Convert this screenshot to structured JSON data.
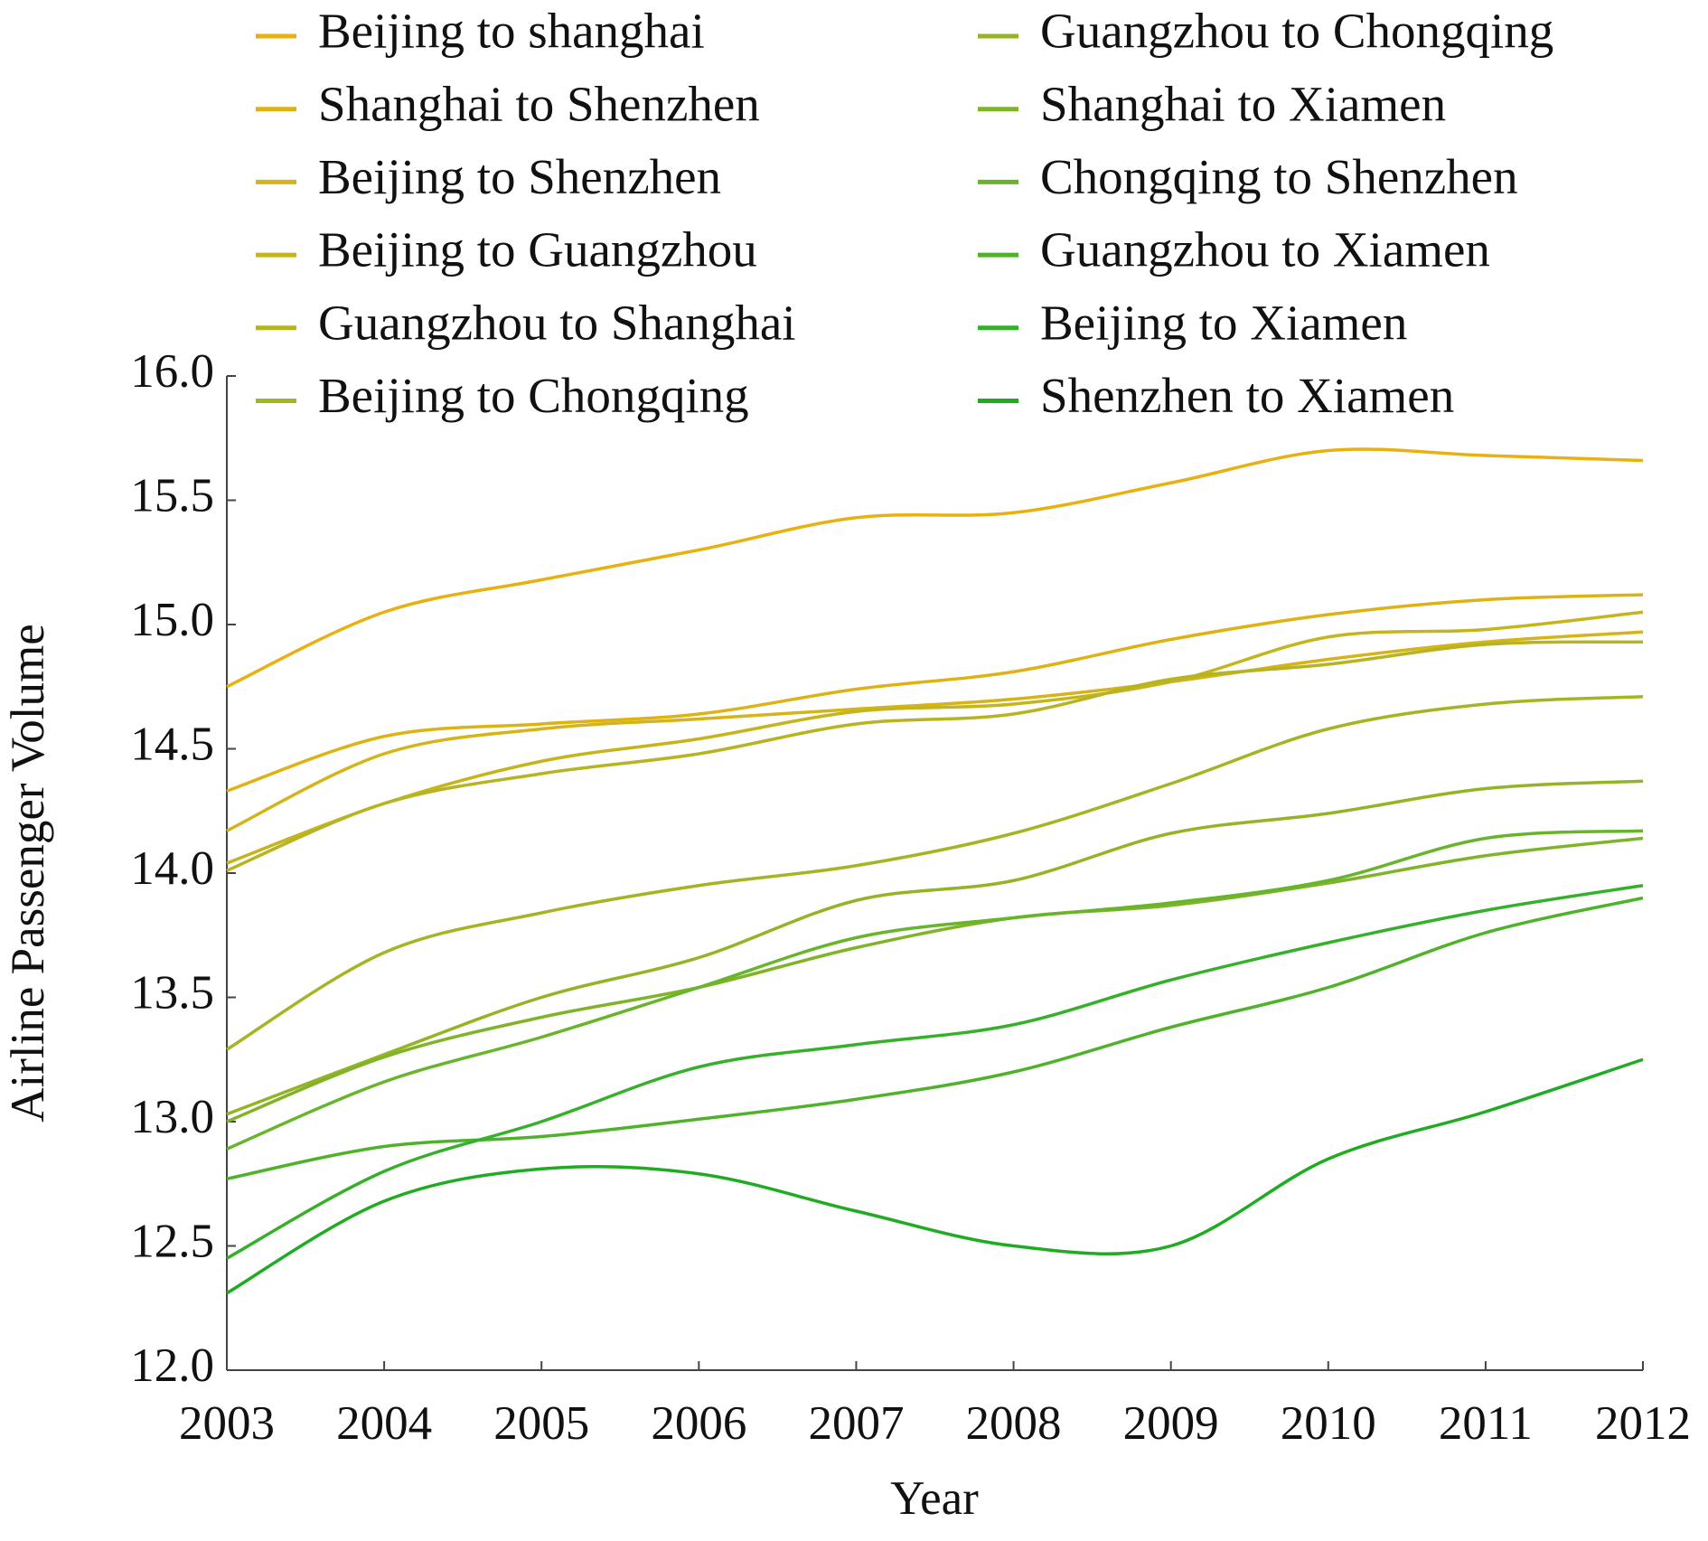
{
  "chart_data": {
    "type": "line",
    "x_label": "Year",
    "y_label": "Airline Passenger Volume",
    "x": [
      2003,
      2004,
      2005,
      2006,
      2007,
      2008,
      2009,
      2010,
      2011,
      2012
    ],
    "xlim": [
      2003,
      2012
    ],
    "xticks": [
      2003,
      2004,
      2005,
      2006,
      2007,
      2008,
      2009,
      2010,
      2011,
      2012
    ],
    "ylim": [
      12.0,
      16.0
    ],
    "yticks": [
      {
        "value": 12,
        "label": "12.0"
      },
      12.5,
      {
        "value": 13,
        "label": "13.0"
      },
      13.5,
      {
        "value": 14,
        "label": "14.0"
      },
      14.5,
      {
        "value": 15,
        "label": "15.0"
      },
      15.5,
      {
        "value": 16,
        "label": "16.0"
      }
    ],
    "series": [
      {
        "name": "Beijing to shanghai",
        "color": "#e8b010",
        "values": [
          14.75,
          15.05,
          15.18,
          15.3,
          15.43,
          15.45,
          15.57,
          15.7,
          15.68,
          15.66
        ]
      },
      {
        "name": "Shanghai to Shenzhen",
        "color": "#dfb214",
        "values": [
          14.33,
          14.55,
          14.6,
          14.64,
          14.74,
          14.81,
          14.94,
          15.04,
          15.1,
          15.12
        ]
      },
      {
        "name": "Beijing to Shenzhen",
        "color": "#d4b418",
        "values": [
          14.17,
          14.48,
          14.58,
          14.62,
          14.66,
          14.7,
          14.77,
          14.86,
          14.93,
          14.97
        ]
      },
      {
        "name": "Beijing to Guangzhou",
        "color": "#c6b41c",
        "values": [
          14.04,
          14.28,
          14.45,
          14.54,
          14.65,
          14.68,
          14.77,
          14.95,
          14.98,
          15.05
        ]
      },
      {
        "name": "Guangzhou to Shanghai",
        "color": "#b6b420",
        "values": [
          14.01,
          14.28,
          14.4,
          14.48,
          14.6,
          14.64,
          14.78,
          14.84,
          14.92,
          14.93
        ]
      },
      {
        "name": "Beijing to Chongqing",
        "color": "#a6b424",
        "values": [
          13.29,
          13.68,
          13.84,
          13.95,
          14.03,
          14.16,
          14.36,
          14.58,
          14.68,
          14.71
        ]
      },
      {
        "name": "Guangzhou to Chongqing",
        "color": "#94b426",
        "values": [
          13.03,
          13.27,
          13.5,
          13.66,
          13.89,
          13.97,
          14.16,
          14.24,
          14.34,
          14.37
        ]
      },
      {
        "name": "Shanghai to Xiamen",
        "color": "#80b428",
        "values": [
          13.0,
          13.26,
          13.42,
          13.54,
          13.7,
          13.82,
          13.87,
          13.96,
          14.07,
          14.14
        ]
      },
      {
        "name": "Chongqing to Shenzhen",
        "color": "#68b42a",
        "values": [
          12.89,
          13.16,
          13.34,
          13.54,
          13.74,
          13.82,
          13.88,
          13.97,
          14.14,
          14.17
        ]
      },
      {
        "name": "Guangzhou to Xiamen",
        "color": "#50b22a",
        "values": [
          12.77,
          12.9,
          12.94,
          13.01,
          13.09,
          13.2,
          13.38,
          13.54,
          13.76,
          13.9
        ]
      },
      {
        "name": "Beijing to Xiamen",
        "color": "#36b02a",
        "values": [
          12.45,
          12.8,
          13.0,
          13.22,
          13.31,
          13.39,
          13.57,
          13.72,
          13.85,
          13.95
        ]
      },
      {
        "name": "Shenzhen to Xiamen",
        "color": "#1fac22",
        "values": [
          12.31,
          12.68,
          12.81,
          12.79,
          12.64,
          12.5,
          12.5,
          12.85,
          13.04,
          13.25
        ]
      }
    ]
  }
}
